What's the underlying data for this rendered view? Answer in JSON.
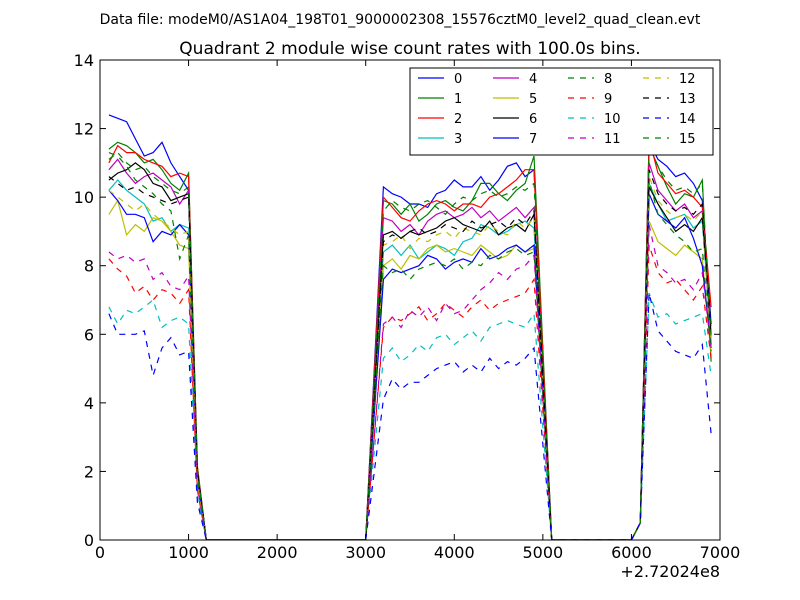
{
  "chart_data": {
    "type": "line",
    "suptitle": "Data file: modeM0/AS1A04_198T01_9000002308_15576cztM0_level2_quad_clean.evt",
    "title": "Quadrant 2 module wise count rates with 100.0s bins.",
    "xlabel": "",
    "ylabel": "",
    "x_offset_label": "+2.72024e8",
    "xlim": [
      0,
      7000
    ],
    "ylim": [
      0,
      14
    ],
    "xticks": [
      0,
      1000,
      2000,
      3000,
      4000,
      5000,
      6000,
      7000
    ],
    "yticks": [
      0,
      2,
      4,
      6,
      8,
      10,
      12,
      14
    ],
    "legend_position": "top-right",
    "legend_columns": 4,
    "segments": [
      {
        "start": 100,
        "end": 1000,
        "drop": [
          1100,
          1200
        ],
        "zero_until": 3000
      },
      {
        "start": 3200,
        "end": 4900,
        "rise_from": 3000,
        "drop": [
          5100
        ],
        "zero_until": 6000
      },
      {
        "start": 6200,
        "end": 6800,
        "rise_from": 6000,
        "rise_mid": 6100,
        "end_at": 6900
      }
    ],
    "series": [
      {
        "name": "0",
        "color": "#0000ff",
        "dash": "solid",
        "seg1": [
          12.4,
          12.3,
          12.2,
          11.7,
          11.2,
          11.3,
          11.6,
          11.0,
          10.6,
          10.2
        ],
        "seg2": [
          10.3,
          10.1,
          10.0,
          9.8,
          9.8,
          9.7,
          10.1,
          10.2,
          10.5,
          10.3,
          10.3,
          10.6,
          10.2,
          10.5,
          10.9,
          11.0,
          10.6,
          10.8
        ],
        "seg3": [
          11.6,
          11.1,
          10.9,
          10.6,
          10.7,
          10.4,
          9.9,
          6.3
        ]
      },
      {
        "name": "1",
        "color": "#008000",
        "dash": "solid",
        "seg1": [
          11.4,
          11.6,
          11.5,
          11.3,
          11.0,
          11.1,
          10.8,
          10.4,
          10.2,
          10.7
        ],
        "seg2": [
          9.9,
          9.8,
          9.5,
          9.8,
          9.3,
          9.5,
          9.8,
          9.9,
          9.7,
          9.6,
          9.9,
          10.4,
          10.4,
          10.1,
          9.9,
          10.2,
          10.4,
          11.2
        ],
        "seg3": [
          11.5,
          10.9,
          10.3,
          9.8,
          10.1,
          10.0,
          10.5,
          5.2
        ]
      },
      {
        "name": "2",
        "color": "#ff0000",
        "dash": "solid",
        "seg1": [
          11.0,
          11.5,
          11.3,
          11.3,
          11.1,
          11.0,
          10.9,
          10.6,
          10.7,
          10.6
        ],
        "seg2": [
          10.0,
          9.7,
          9.4,
          9.3,
          9.6,
          9.8,
          9.9,
          9.8,
          9.6,
          9.8,
          9.8,
          9.7,
          10.0,
          10.1,
          10.3,
          10.5,
          10.8,
          10.8
        ],
        "seg3": [
          11.7,
          10.7,
          10.4,
          10.1,
          10.2,
          10.0,
          9.7,
          6.8
        ]
      },
      {
        "name": "3",
        "color": "#00bfbf",
        "dash": "solid",
        "seg1": [
          10.2,
          10.5,
          10.2,
          10.0,
          9.8,
          9.3,
          9.4,
          9.0,
          9.2,
          9.1
        ],
        "seg2": [
          8.4,
          8.6,
          8.3,
          8.6,
          8.2,
          8.4,
          8.6,
          8.5,
          8.3,
          8.7,
          8.8,
          9.2,
          9.1,
          8.9,
          9.0,
          9.2,
          9.3,
          9.1
        ],
        "seg3": [
          10.4,
          9.8,
          9.3,
          9.4,
          9.5,
          9.1,
          9.3,
          5.9
        ]
      },
      {
        "name": "4",
        "color": "#bf00bf",
        "dash": "solid",
        "seg1": [
          10.8,
          11.1,
          10.7,
          10.4,
          10.6,
          10.7,
          10.5,
          10.3,
          9.8,
          10.2
        ],
        "seg2": [
          9.4,
          9.3,
          9.0,
          9.2,
          8.9,
          9.3,
          9.5,
          9.6,
          9.4,
          9.5,
          9.7,
          9.4,
          9.6,
          9.3,
          9.5,
          9.7,
          9.4,
          9.7
        ],
        "seg3": [
          11.0,
          10.2,
          9.9,
          9.6,
          9.8,
          9.4,
          9.6,
          5.7
        ]
      },
      {
        "name": "5",
        "color": "#bfbf00",
        "dash": "solid",
        "seg1": [
          9.5,
          9.9,
          8.9,
          9.2,
          9.0,
          9.4,
          9.3,
          9.0,
          8.6,
          8.5
        ],
        "seg2": [
          8.0,
          8.2,
          7.9,
          8.3,
          8.2,
          8.5,
          8.6,
          8.4,
          8.5,
          8.4,
          8.3,
          8.6,
          8.4,
          8.2,
          8.3,
          8.6,
          8.4,
          8.5
        ],
        "seg3": [
          9.3,
          8.7,
          8.5,
          8.3,
          8.6,
          8.4,
          8.2,
          5.4
        ]
      },
      {
        "name": "6",
        "color": "#000000",
        "dash": "solid",
        "seg1": [
          10.5,
          10.7,
          10.8,
          11.0,
          10.8,
          10.4,
          10.3,
          9.9,
          10.0,
          10.1
        ],
        "seg2": [
          8.9,
          9.0,
          8.8,
          9.0,
          8.9,
          9.0,
          9.1,
          9.3,
          9.4,
          9.2,
          9.1,
          9.0,
          9.3,
          8.9,
          9.1,
          9.2,
          9.0,
          9.5
        ],
        "seg3": [
          10.3,
          9.8,
          9.4,
          9.0,
          9.2,
          9.0,
          9.4,
          6.0
        ]
      },
      {
        "name": "7",
        "color": "#0000ff",
        "dash": "solid",
        "seg1": [
          10.2,
          9.9,
          9.5,
          9.5,
          9.4,
          8.7,
          9.0,
          8.9,
          9.2,
          8.9
        ],
        "seg2": [
          7.6,
          7.9,
          7.8,
          7.9,
          8.0,
          8.3,
          8.2,
          7.9,
          8.1,
          8.2,
          8.1,
          8.5,
          8.2,
          8.3,
          8.5,
          8.6,
          8.4,
          8.6
        ],
        "seg3": [
          10.1,
          9.5,
          9.3,
          9.1,
          9.4,
          8.8,
          8.0,
          5.6
        ]
      },
      {
        "name": "8",
        "color": "#008000",
        "dash": "dashed",
        "seg1": [
          11.3,
          11.2,
          10.9,
          10.5,
          10.3,
          10.1,
          9.8,
          9.6,
          8.2,
          8.9
        ],
        "seg2": [
          8.0,
          7.8,
          7.9,
          7.6,
          7.9,
          8.0,
          8.1,
          8.0,
          8.2,
          7.9,
          8.1,
          8.0,
          8.3,
          8.2,
          8.4,
          8.5,
          8.3,
          8.4
        ],
        "seg3": [
          10.5,
          9.5,
          9.2,
          8.9,
          8.7,
          8.4,
          8.5,
          5.5
        ]
      },
      {
        "name": "9",
        "color": "#ff0000",
        "dash": "dashed",
        "seg1": [
          8.2,
          7.9,
          7.7,
          7.2,
          7.4,
          7.0,
          7.3,
          7.2,
          6.9,
          7.3
        ],
        "seg2": [
          6.2,
          6.5,
          6.4,
          6.6,
          6.8,
          6.4,
          6.6,
          6.9,
          6.7,
          6.5,
          6.8,
          7.0,
          6.7,
          6.9,
          7.0,
          7.1,
          7.2,
          7.6
        ],
        "seg3": [
          8.6,
          7.8,
          7.5,
          7.6,
          7.3,
          7.0,
          7.4,
          5.3
        ]
      },
      {
        "name": "10",
        "color": "#00bfbf",
        "dash": "dashed",
        "seg1": [
          6.8,
          6.3,
          6.7,
          6.6,
          6.8,
          7.0,
          6.2,
          6.4,
          6.5,
          6.3
        ],
        "seg2": [
          5.3,
          5.6,
          5.2,
          5.4,
          5.7,
          5.5,
          5.9,
          6.0,
          5.7,
          5.9,
          6.1,
          5.8,
          6.2,
          6.3,
          6.4,
          6.3,
          6.2,
          6.6
        ],
        "seg3": [
          7.2,
          6.5,
          6.6,
          6.3,
          6.4,
          6.5,
          6.6,
          4.8
        ]
      },
      {
        "name": "11",
        "color": "#bf00bf",
        "dash": "dashed",
        "seg1": [
          8.4,
          8.2,
          8.3,
          8.1,
          8.2,
          7.6,
          7.8,
          7.4,
          7.3,
          7.7
        ],
        "seg2": [
          6.3,
          6.5,
          6.2,
          6.7,
          6.5,
          6.8,
          6.4,
          6.9,
          6.6,
          6.7,
          7.0,
          7.3,
          7.5,
          7.8,
          7.6,
          7.9,
          8.0,
          8.3
        ],
        "seg3": [
          9.2,
          8.0,
          7.8,
          7.5,
          7.6,
          7.3,
          7.8,
          5.6
        ]
      },
      {
        "name": "12",
        "color": "#bfbf00",
        "dash": "dashed",
        "seg1": [
          10.2,
          10.0,
          9.8,
          9.6,
          9.8,
          9.5,
          9.3,
          9.1,
          8.9,
          9.0
        ],
        "seg2": [
          8.6,
          8.7,
          8.9,
          8.5,
          8.8,
          8.7,
          8.9,
          9.0,
          8.8,
          9.1,
          9.0,
          8.9,
          9.2,
          9.0,
          8.9,
          9.3,
          9.1,
          9.4
        ],
        "seg3": [
          10.6,
          9.9,
          9.6,
          9.4,
          9.5,
          9.3,
          9.6,
          5.8
        ]
      },
      {
        "name": "13",
        "color": "#000000",
        "dash": "dashed",
        "seg1": [
          10.6,
          10.4,
          10.2,
          10.3,
          10.1,
          10.0,
          9.9,
          9.8,
          9.9,
          10.0
        ],
        "seg2": [
          8.7,
          8.9,
          8.8,
          9.0,
          9.1,
          8.9,
          9.0,
          9.2,
          9.1,
          9.0,
          9.3,
          9.1,
          9.2,
          9.3,
          9.1,
          9.4,
          9.2,
          9.6
        ],
        "seg3": [
          10.8,
          10.1,
          9.8,
          9.6,
          9.7,
          9.5,
          9.8,
          6.1
        ]
      },
      {
        "name": "14",
        "color": "#0000ff",
        "dash": "dashed",
        "seg1": [
          6.6,
          6.0,
          6.0,
          6.0,
          6.1,
          4.8,
          5.6,
          5.9,
          5.4,
          5.5
        ],
        "seg2": [
          4.1,
          4.7,
          4.4,
          4.6,
          4.6,
          4.8,
          5.0,
          5.1,
          5.2,
          4.9,
          5.1,
          4.9,
          5.3,
          5.0,
          5.2,
          5.1,
          5.3,
          5.6
        ],
        "seg3": [
          7.2,
          6.1,
          5.8,
          5.5,
          5.4,
          5.3,
          5.7,
          3.1
        ]
      },
      {
        "name": "15",
        "color": "#008000",
        "dash": "dashed",
        "seg1": [
          11.1,
          11.3,
          11.0,
          10.8,
          10.9,
          10.6,
          10.4,
          10.2,
          10.1,
          10.3
        ],
        "seg2": [
          9.6,
          9.9,
          9.7,
          9.6,
          9.8,
          9.9,
          9.7,
          9.5,
          9.8,
          10.0,
          9.9,
          10.1,
          10.2,
          10.0,
          10.1,
          10.3,
          10.2,
          10.4
        ],
        "seg3": [
          11.5,
          10.9,
          10.5,
          10.2,
          10.3,
          10.1,
          10.4,
          5.9
        ]
      }
    ]
  }
}
